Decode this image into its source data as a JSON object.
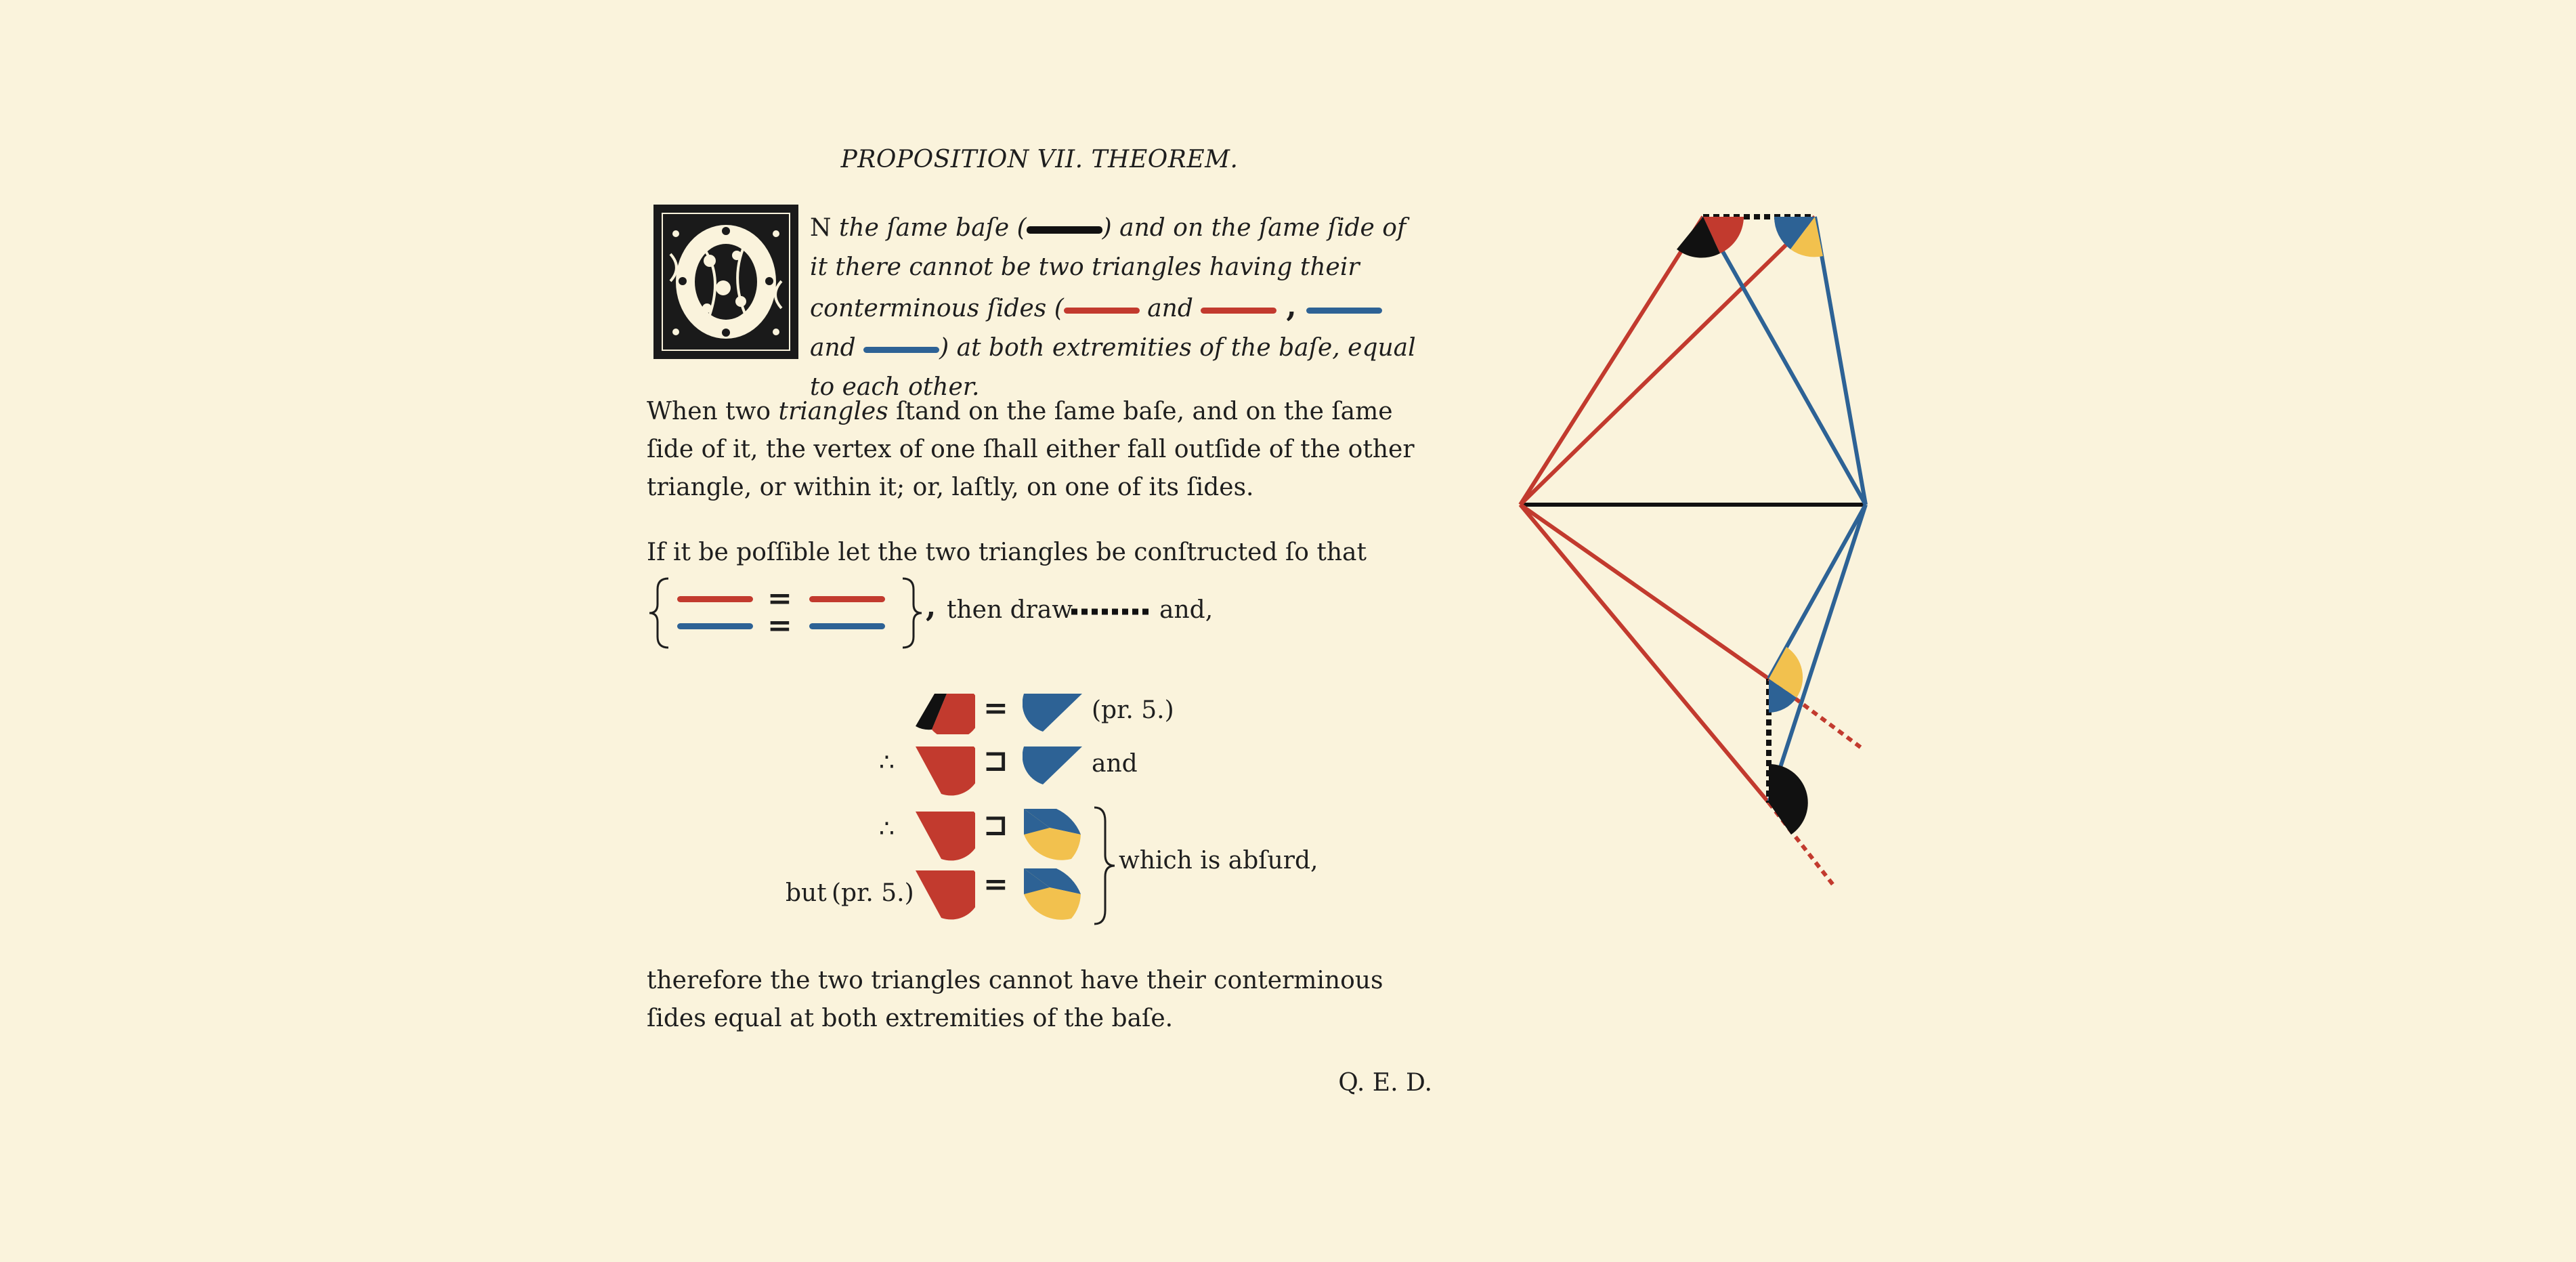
{
  "title": "PROPOSITION VII. THEOREM.",
  "initial_letter": "O",
  "lead": {
    "cap": "N",
    "part1": "the ſame baſe (",
    "part2": ") and on the ſame ſide of it there cannot be two triangles having their conterminous ſides (",
    "and": "and",
    "close": ") at both extremities of the baſe, equal to each other."
  },
  "paragraph1": {
    "pre": "When two ",
    "emphasis": "triangles",
    "post": " ſtand on the ſame baſe, and on the ſame ſide of it, the vertex of one ſhall either fall outſide of the other triangle, or within it; or, laſtly, on one of its ſides."
  },
  "paragraph2": "If it be poſſible let the two triangles be conſtructed ſo that",
  "construction": {
    "equals": "=",
    "comma": ",",
    "then_draw": "then draw",
    "and": "and,"
  },
  "proof": {
    "therefore": "∴",
    "equals": "=",
    "greater": "⊐",
    "ref": "(pr. 5.)",
    "and": "and",
    "but": "but",
    "absurd": "which is abſurd,"
  },
  "conclusion": "therefore the two triangles cannot have their conterminous ſides equal at both extremities of the baſe.",
  "qed": "Q. E. D.",
  "colors": {
    "red": "#c23a2e",
    "blue": "#2d6295",
    "yellow": "#f2c14e",
    "black": "#111111",
    "background": "#faf3dc"
  }
}
